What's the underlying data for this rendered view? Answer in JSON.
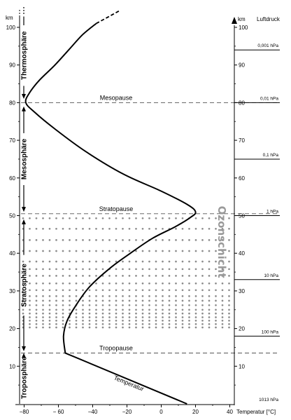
{
  "axes": {
    "left_unit": "km",
    "right_unit": "km",
    "pressure_title": "Luftdruck",
    "x_title": "Temperatur [°C]",
    "km_ticks": [
      10,
      20,
      30,
      40,
      50,
      60,
      70,
      80,
      90,
      100
    ],
    "temp_ticks": [
      {
        "value": -80,
        "label": "−80"
      },
      {
        "value": -60,
        "label": "− 60"
      },
      {
        "value": -40,
        "label": "−40"
      },
      {
        "value": -20,
        "label": "−20"
      },
      {
        "value": 0,
        "label": "0"
      },
      {
        "value": 20,
        "label": "20"
      },
      {
        "value": 40,
        "label": "40"
      }
    ],
    "temp_range": [
      -86,
      48
    ],
    "km_range": [
      0,
      103
    ]
  },
  "pressure_levels": [
    {
      "km": 94,
      "label": "0,001 hPa"
    },
    {
      "km": 80,
      "label": "0,01 hPa"
    },
    {
      "km": 65,
      "label": "0,1 hPa"
    },
    {
      "km": 50,
      "label": "1 hPa"
    },
    {
      "km": 33,
      "label": "10 hPa"
    },
    {
      "km": 18,
      "label": "100 hPa"
    },
    {
      "km": 0,
      "label": "1013 hPa"
    }
  ],
  "boundaries": [
    {
      "km": 80,
      "label": "Mesopause"
    },
    {
      "km": 50.5,
      "label": "Stratopause"
    },
    {
      "km": 13.5,
      "label": "Tropopause"
    }
  ],
  "layers": [
    {
      "name": "Troposphäre",
      "from": 0,
      "to": 13.5
    },
    {
      "name": "Stratosphäre",
      "from": 14,
      "to": 49
    },
    {
      "name": "Mesosphäre",
      "from": 51,
      "to": 79
    },
    {
      "name": "Thermosphäre",
      "from": 81,
      "to": 104
    }
  ],
  "ozone": {
    "label": "Ozonschicht",
    "from_km": 20,
    "to_km": 50
  },
  "curve": {
    "label": "Temperatur",
    "points": [
      [
        15,
        0
      ],
      [
        -56,
        13.5
      ],
      [
        -57,
        18
      ],
      [
        -55,
        22
      ],
      [
        -50,
        26
      ],
      [
        -42,
        31
      ],
      [
        -30,
        36
      ],
      [
        -18,
        40
      ],
      [
        -5,
        44
      ],
      [
        8,
        47
      ],
      [
        17,
        49.5
      ],
      [
        20,
        51
      ],
      [
        15,
        53
      ],
      [
        0,
        56.5
      ],
      [
        -22,
        61
      ],
      [
        -44,
        67
      ],
      [
        -62,
        73
      ],
      [
        -74,
        77.5
      ],
      [
        -79,
        80
      ],
      [
        -77,
        82.5
      ],
      [
        -71,
        86
      ],
      [
        -62,
        90
      ],
      [
        -54,
        94
      ],
      [
        -46,
        98
      ],
      [
        -38,
        101
      ]
    ],
    "dashed_points": [
      [
        -38,
        101
      ],
      [
        -30,
        103
      ],
      [
        -24,
        104.5
      ]
    ]
  }
}
